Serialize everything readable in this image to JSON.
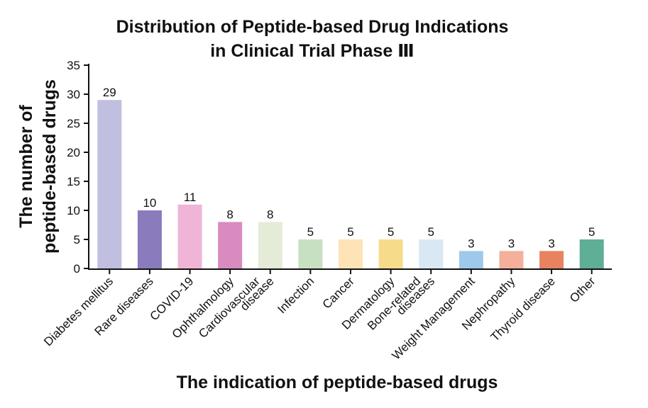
{
  "chart_data": {
    "type": "bar",
    "title": [
      "Distribution of Peptide-based Drug Indications",
      "in Clinical Trial Phase Ⅲ"
    ],
    "x_label": "The indication of peptide-based drugs",
    "y_label": [
      "The number of",
      "peptide-based drugs"
    ],
    "categories": [
      [
        "Diabetes mellitus"
      ],
      [
        "Rare diseases"
      ],
      [
        "COVID-19"
      ],
      [
        "Ophthalmology"
      ],
      [
        "Cardiovascular",
        "disease"
      ],
      [
        "Infection"
      ],
      [
        "Cancer"
      ],
      [
        "Dermatology"
      ],
      [
        "Bone-related",
        "diseases"
      ],
      [
        "Weight Management"
      ],
      [
        "Nephropathy"
      ],
      [
        "Thyroid disease"
      ],
      [
        "Other"
      ]
    ],
    "values": [
      29,
      10,
      11,
      8,
      8,
      5,
      5,
      5,
      5,
      3,
      3,
      3,
      5
    ],
    "colors": [
      "#c0bfe0",
      "#8a7bbd",
      "#f0b5d6",
      "#d98bbf",
      "#e4ecd8",
      "#c8e0c2",
      "#fde3b5",
      "#f6dc8a",
      "#d9e8f3",
      "#9fc9ea",
      "#f4b09a",
      "#e8825f",
      "#5fae96"
    ],
    "ylim": [
      0,
      35
    ],
    "yticks": [
      0,
      5,
      10,
      15,
      20,
      25,
      30,
      35
    ],
    "grid": false
  }
}
